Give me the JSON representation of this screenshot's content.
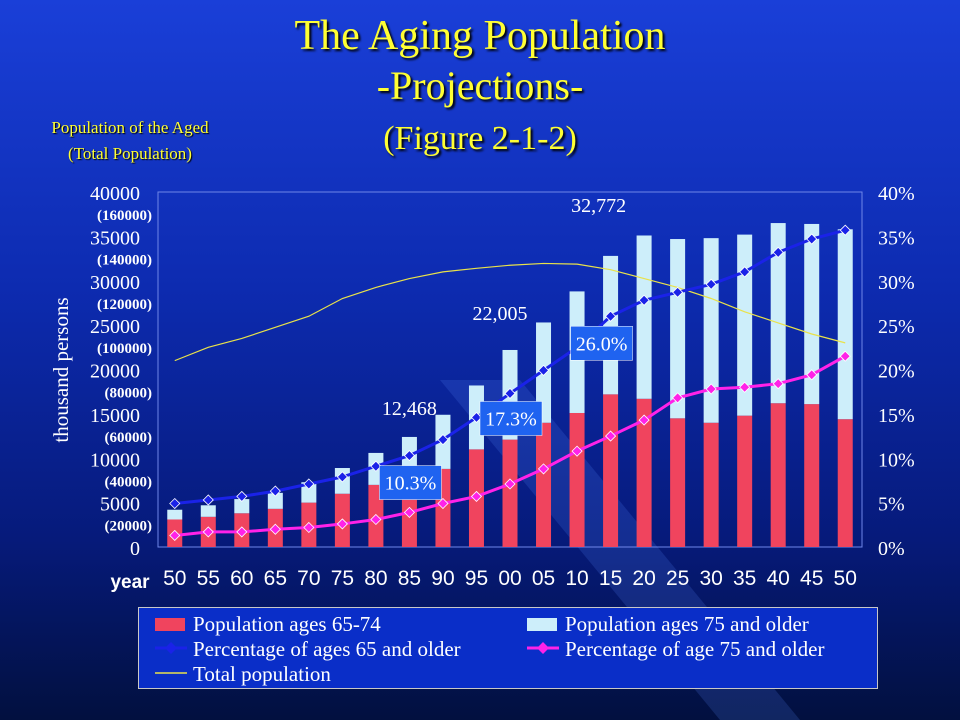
{
  "title": {
    "line1": "The Aging Population",
    "line2": "-Projections-",
    "line3": "(Figure 2-1-2)"
  },
  "left_axis_header": {
    "line1": "Population of the Aged",
    "line2": "(Total Population)"
  },
  "colors": {
    "bar_65_74": "#f0445e",
    "bar_75_over": "#cdeefa",
    "line_65_over": "#1a22e8",
    "line_75_over": "#ff22e8",
    "line_total": "#e9e24a",
    "axis_text": "#ffffff",
    "title": "#ffff33"
  },
  "chart_data": {
    "type": "bar",
    "xlabel": "year",
    "ylabel": "thousand persons",
    "categories": [
      "50",
      "55",
      "60",
      "65",
      "70",
      "75",
      "80",
      "85",
      "90",
      "95",
      "00",
      "05",
      "10",
      "15",
      "20",
      "25",
      "30",
      "35",
      "40",
      "45",
      "50"
    ],
    "ylim": [
      0,
      40000
    ],
    "y2lim": [
      0,
      40
    ],
    "y_ticks": [
      "0",
      "5000",
      "10000",
      "15000",
      "20000",
      "25000",
      "30000",
      "35000",
      "40000"
    ],
    "total_scale_ticks": [
      "(20000)",
      "(40000)",
      "(60000)",
      "(80000)",
      "(100000)",
      "(120000)",
      "(140000)",
      "(160000)"
    ],
    "y2_ticks": [
      "0%",
      "5%",
      "10%",
      "15%",
      "20%",
      "25%",
      "30%",
      "35%",
      "40%"
    ],
    "series": [
      {
        "name": "Population ages 65-74",
        "type": "bar",
        "stack": "aged",
        "values": [
          3100,
          3400,
          3800,
          4300,
          5000,
          6000,
          7000,
          8000,
          8800,
          11000,
          12100,
          14000,
          15100,
          17200,
          16700,
          14500,
          14000,
          14800,
          16200,
          16100,
          14400
        ]
      },
      {
        "name": "Population ages 75 and older",
        "type": "bar",
        "stack": "aged",
        "values": [
          1100,
          1300,
          1600,
          1800,
          2300,
          2900,
          3600,
          4400,
          6100,
          7200,
          10100,
          11300,
          13700,
          15600,
          18400,
          20200,
          20800,
          20400,
          20300,
          20300,
          21400
        ]
      },
      {
        "name": "Percentage of ages 65 and older",
        "type": "line",
        "axis": "right",
        "values": [
          4.9,
          5.3,
          5.7,
          6.3,
          7.1,
          7.9,
          9.1,
          10.3,
          12.1,
          14.6,
          17.3,
          19.9,
          22.5,
          26.0,
          27.8,
          28.7,
          29.6,
          31.0,
          33.2,
          34.7,
          35.7
        ]
      },
      {
        "name": "Percentage of age 75 and older",
        "type": "line",
        "axis": "right",
        "values": [
          1.3,
          1.7,
          1.7,
          2.0,
          2.2,
          2.6,
          3.1,
          3.9,
          4.9,
          5.7,
          7.1,
          8.8,
          10.8,
          12.5,
          14.3,
          16.8,
          17.8,
          18.0,
          18.4,
          19.4,
          21.5
        ]
      },
      {
        "name": "Total population",
        "type": "line",
        "axis": "total",
        "values": [
          84000,
          90000,
          94000,
          99000,
          104000,
          112000,
          117000,
          121000,
          124000,
          125600,
          127000,
          127800,
          127500,
          125000,
          121000,
          117000,
          112000,
          106000,
          101000,
          96000,
          92000
        ]
      }
    ],
    "annotations": [
      {
        "text": "12,468",
        "category": "85",
        "kind": "count"
      },
      {
        "text": "22,005",
        "category": "00",
        "kind": "count"
      },
      {
        "text": "32,772",
        "category": "15",
        "kind": "count"
      },
      {
        "text": "10.3%",
        "category": "85",
        "kind": "pct"
      },
      {
        "text": "17.3%",
        "category": "00",
        "kind": "pct"
      },
      {
        "text": "26.0%",
        "category": "15",
        "kind": "pct"
      }
    ],
    "legend": [
      "Population ages 65-74",
      "Population ages 75 and older",
      "Percentage of ages 65 and older",
      "Percentage of age 75 and older",
      "Total population"
    ],
    "legend_position": "bottom",
    "grid": false
  }
}
